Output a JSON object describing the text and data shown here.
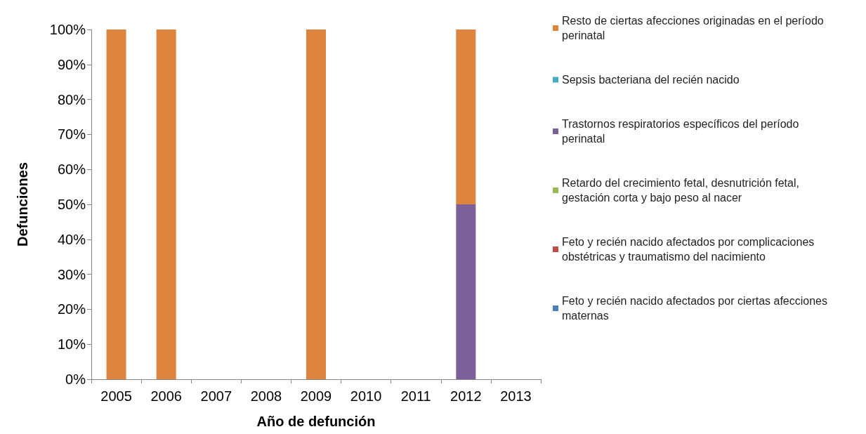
{
  "chart_data": {
    "type": "bar",
    "stacked": true,
    "xlabel": "Año de defunción",
    "ylabel": "Defunciones",
    "categories": [
      "2005",
      "2006",
      "2007",
      "2008",
      "2009",
      "2010",
      "2011",
      "2012",
      "2013"
    ],
    "series": [
      {
        "name": "Feto y recién nacido afectados por ciertas afecciones maternas",
        "color": "#4a7ebb",
        "values": [
          0,
          0,
          0,
          0,
          0,
          0,
          0,
          0,
          0
        ]
      },
      {
        "name": "Feto y recién nacido afectados por complicaciones obstétricas y traumatismo del nacimiento",
        "color": "#be4b48",
        "values": [
          0,
          0,
          0,
          0,
          0,
          0,
          0,
          0,
          0
        ]
      },
      {
        "name": "Retardo del crecimiento fetal, desnutrición fetal, gestación corta y bajo peso al nacer",
        "color": "#98b954",
        "values": [
          0,
          0,
          0,
          0,
          0,
          0,
          0,
          0,
          0
        ]
      },
      {
        "name": "Trastornos respiratorios específicos del período perinatal",
        "color": "#7d5f9b",
        "values": [
          0,
          0,
          0,
          0,
          0,
          0,
          0,
          50,
          0
        ]
      },
      {
        "name": "Sepsis bacteriana del recién nacido",
        "color": "#46aac5",
        "values": [
          0,
          0,
          0,
          0,
          0,
          0,
          0,
          0,
          0
        ]
      },
      {
        "name": "Resto de ciertas afecciones originadas en el período perinatal",
        "color": "#dd843f",
        "values": [
          100,
          100,
          0,
          0,
          100,
          0,
          0,
          50,
          0
        ]
      }
    ],
    "ylim": [
      0,
      100
    ],
    "yticks": [
      {
        "value": 0,
        "label": "0%"
      },
      {
        "value": 10,
        "label": "10%"
      },
      {
        "value": 20,
        "label": "20%"
      },
      {
        "value": 30,
        "label": "30%"
      },
      {
        "value": 40,
        "label": "40%"
      },
      {
        "value": 50,
        "label": "50%"
      },
      {
        "value": 60,
        "label": "60%"
      },
      {
        "value": 70,
        "label": "70%"
      },
      {
        "value": 80,
        "label": "80%"
      },
      {
        "value": 90,
        "label": "90%"
      },
      {
        "value": 100,
        "label": "100%"
      }
    ],
    "grid": false,
    "legend": "right"
  }
}
